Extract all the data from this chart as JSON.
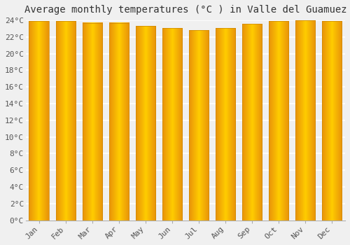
{
  "title": "Average monthly temperatures (°C ) in Valle del Guamuez",
  "months": [
    "Jan",
    "Feb",
    "Mar",
    "Apr",
    "May",
    "Jun",
    "Jul",
    "Aug",
    "Sep",
    "Oct",
    "Nov",
    "Dec"
  ],
  "values": [
    23.9,
    23.9,
    23.7,
    23.7,
    23.3,
    23.1,
    22.8,
    23.1,
    23.6,
    23.9,
    24.0,
    23.9
  ],
  "bar_color_left": "#E8920A",
  "bar_color_mid": "#FFCC00",
  "bar_color_right": "#E8920A",
  "background_color": "#f0f0f0",
  "grid_color": "#ffffff",
  "ylim": [
    0,
    24
  ],
  "ytick_step": 2,
  "title_fontsize": 10,
  "tick_fontsize": 8,
  "tick_font_family": "monospace"
}
